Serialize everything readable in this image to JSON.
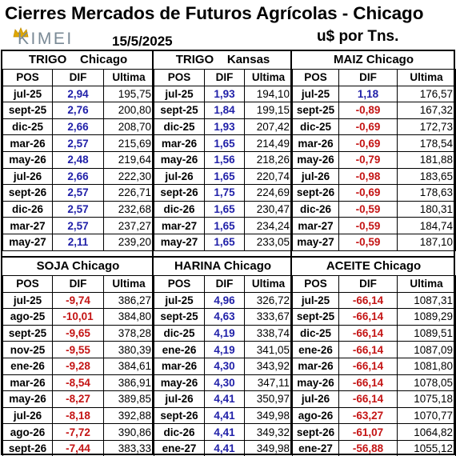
{
  "header": {
    "title": "Cierres Mercados de Futuros Agrícolas - Chicago",
    "logo": "KIMEI",
    "date": "15/5/2025",
    "units": "u$ por Tns."
  },
  "columns": {
    "pos": "POS",
    "dif": "DIF",
    "last": "Ultima"
  },
  "colors": {
    "positive": "#1f1fa8",
    "negative": "#c41414"
  },
  "panels": [
    {
      "title": "TRIGO    Chicago",
      "rows": [
        [
          "jul-25",
          "2,94",
          "195,75"
        ],
        [
          "sept-25",
          "2,76",
          "200,80"
        ],
        [
          "dic-25",
          "2,66",
          "208,70"
        ],
        [
          "mar-26",
          "2,57",
          "215,69"
        ],
        [
          "may-26",
          "2,48",
          "219,64"
        ],
        [
          "jul-26",
          "2,66",
          "222,30"
        ],
        [
          "sept-26",
          "2,57",
          "226,71"
        ],
        [
          "dic-26",
          "2,57",
          "232,68"
        ],
        [
          "mar-27",
          "2,57",
          "237,27"
        ],
        [
          "may-27",
          "2,11",
          "239,20"
        ]
      ]
    },
    {
      "title": "TRIGO    Kansas",
      "rows": [
        [
          "jul-25",
          "1,93",
          "194,10"
        ],
        [
          "sept-25",
          "1,84",
          "199,15"
        ],
        [
          "dic-25",
          "1,93",
          "207,42"
        ],
        [
          "mar-26",
          "1,65",
          "214,49"
        ],
        [
          "may-26",
          "1,56",
          "218,26"
        ],
        [
          "jul-26",
          "1,65",
          "220,74"
        ],
        [
          "sept-26",
          "1,75",
          "224,69"
        ],
        [
          "dic-26",
          "1,65",
          "230,47"
        ],
        [
          "mar-27",
          "1,65",
          "234,24"
        ],
        [
          "may-27",
          "1,65",
          "233,05"
        ]
      ]
    },
    {
      "title": "MAIZ Chicago",
      "rows": [
        [
          "jul-25",
          "1,18",
          "176,57"
        ],
        [
          "sept-25",
          "-0,89",
          "167,32"
        ],
        [
          "dic-25",
          "-0,69",
          "172,73"
        ],
        [
          "mar-26",
          "-0,69",
          "178,54"
        ],
        [
          "may-26",
          "-0,79",
          "181,88"
        ],
        [
          "jul-26",
          "-0,98",
          "183,65"
        ],
        [
          "sept-26",
          "-0,69",
          "178,63"
        ],
        [
          "dic-26",
          "-0,59",
          "180,31"
        ],
        [
          "mar-27",
          "-0,59",
          "184,74"
        ],
        [
          "may-27",
          "-0,59",
          "187,10"
        ]
      ]
    },
    {
      "title": "SOJA Chicago",
      "rows": [
        [
          "jul-25",
          "-9,74",
          "386,27"
        ],
        [
          "ago-25",
          "-10,01",
          "384,80"
        ],
        [
          "sept-25",
          "-9,65",
          "378,28"
        ],
        [
          "nov-25",
          "-9,55",
          "380,39"
        ],
        [
          "ene-26",
          "-9,28",
          "384,61"
        ],
        [
          "mar-26",
          "-8,54",
          "386,91"
        ],
        [
          "may-26",
          "-8,27",
          "389,85"
        ],
        [
          "jul-26",
          "-8,18",
          "392,88"
        ],
        [
          "ago-26",
          "-7,72",
          "390,86"
        ],
        [
          "sept-26",
          "-7,44",
          "383,33"
        ]
      ]
    },
    {
      "title": "HARINA Chicago",
      "rows": [
        [
          "jul-25",
          "4,96",
          "326,72"
        ],
        [
          "sept-25",
          "4,63",
          "333,67"
        ],
        [
          "dic-25",
          "4,19",
          "338,74"
        ],
        [
          "ene-26",
          "4,19",
          "341,05"
        ],
        [
          "mar-26",
          "4,30",
          "343,92"
        ],
        [
          "may-26",
          "4,30",
          "347,11"
        ],
        [
          "jul-26",
          "4,41",
          "350,97"
        ],
        [
          "sept-26",
          "4,41",
          "349,98"
        ],
        [
          "dic-26",
          "4,41",
          "349,32"
        ],
        [
          "ene-27",
          "4,41",
          "349,98"
        ]
      ]
    },
    {
      "title": "ACEITE Chicago",
      "rows": [
        [
          "jul-25",
          "-66,14",
          "1087,31"
        ],
        [
          "sept-25",
          "-66,14",
          "1089,29"
        ],
        [
          "dic-25",
          "-66,14",
          "1089,51"
        ],
        [
          "ene-26",
          "-66,14",
          "1087,09"
        ],
        [
          "mar-26",
          "-66,14",
          "1081,80"
        ],
        [
          "may-26",
          "-66,14",
          "1078,05"
        ],
        [
          "jul-26",
          "-66,14",
          "1075,18"
        ],
        [
          "ago-26",
          "-63,27",
          "1070,77"
        ],
        [
          "sept-26",
          "-61,07",
          "1064,82"
        ],
        [
          "ene-27",
          "-56,88",
          "1055,12"
        ]
      ]
    }
  ]
}
